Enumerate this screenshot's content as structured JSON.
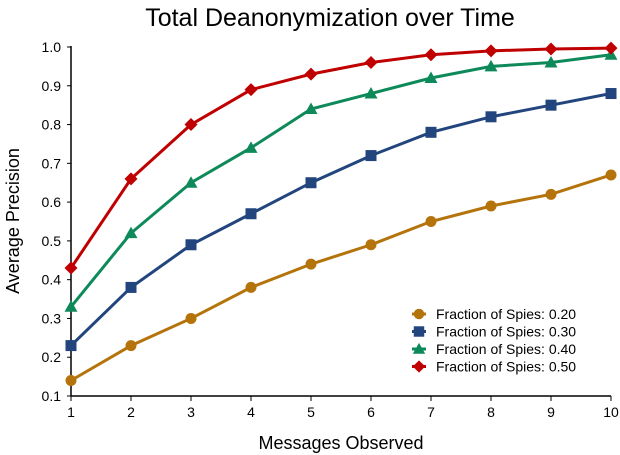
{
  "chart_data": {
    "type": "line",
    "title": "Total Deanonymization over Time",
    "xlabel": "Messages Observed",
    "ylabel": "Average Precision",
    "x": [
      1,
      2,
      3,
      4,
      5,
      6,
      7,
      8,
      9,
      10
    ],
    "xlim": [
      1,
      10
    ],
    "ylim": [
      0.1,
      1.0
    ],
    "xticks": [
      "1",
      "2",
      "3",
      "4",
      "5",
      "6",
      "7",
      "8",
      "9",
      "10"
    ],
    "yticks": [
      "0.1",
      "0.2",
      "0.3",
      "0.4",
      "0.5",
      "0.6",
      "0.7",
      "0.8",
      "0.9",
      "1.0"
    ],
    "grid": false,
    "legend_position": "bottom-right",
    "series": [
      {
        "name": "Fraction of Spies: 0.20",
        "color": "#B5730B",
        "marker": "circle",
        "values": [
          0.14,
          0.23,
          0.3,
          0.38,
          0.44,
          0.49,
          0.55,
          0.59,
          0.62,
          0.67
        ]
      },
      {
        "name": "Fraction of Spies: 0.30",
        "color": "#22457E",
        "marker": "square",
        "values": [
          0.23,
          0.38,
          0.49,
          0.57,
          0.65,
          0.72,
          0.78,
          0.82,
          0.85,
          0.88
        ]
      },
      {
        "name": "Fraction of Spies: 0.40",
        "color": "#0E8A5A",
        "marker": "triangle",
        "values": [
          0.33,
          0.52,
          0.65,
          0.74,
          0.84,
          0.88,
          0.92,
          0.95,
          0.96,
          0.98
        ]
      },
      {
        "name": "Fraction of Spies: 0.50",
        "color": "#C00000",
        "marker": "diamond",
        "values": [
          0.43,
          0.66,
          0.8,
          0.89,
          0.93,
          0.96,
          0.98,
          0.99,
          0.995,
          0.997
        ]
      }
    ]
  }
}
